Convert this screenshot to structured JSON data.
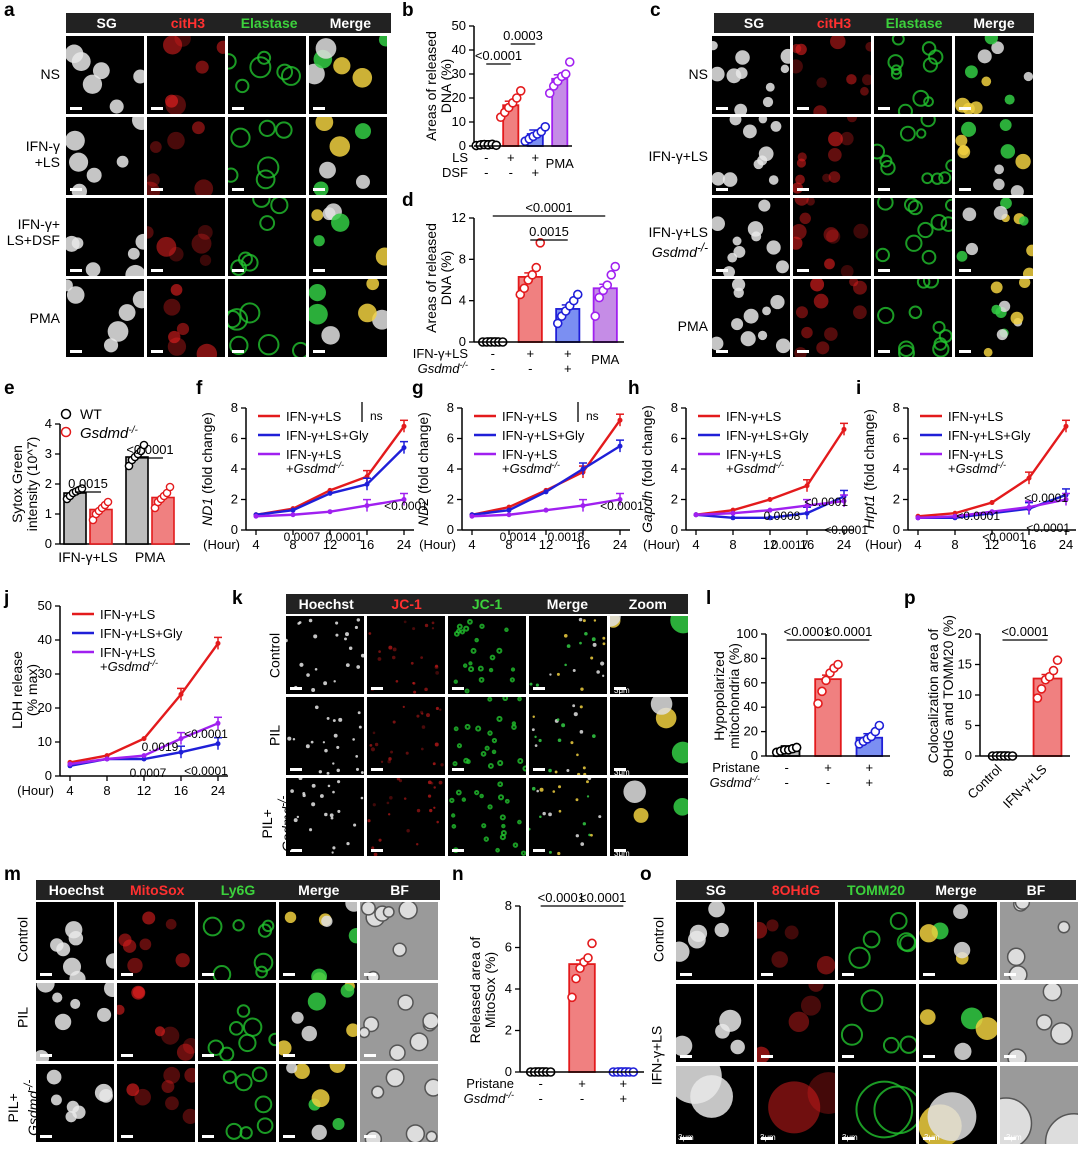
{
  "panels": {
    "a": "a",
    "b": "b",
    "c": "c",
    "d": "d",
    "e": "e",
    "f": "f",
    "g": "g",
    "h": "h",
    "i": "i",
    "j": "j",
    "k": "k",
    "l": "l",
    "m": "m",
    "n": "n",
    "o": "o",
    "p": "p"
  },
  "colors": {
    "red": "#e31a1c",
    "blue": "#1f1fd8",
    "purple": "#a020f0",
    "green": "#1db33a",
    "pink": "#f08080",
    "lightblue": "#7b8ff2",
    "lightpurple": "#c58ce6",
    "grey": "#bdbdbd"
  },
  "a": {
    "headers": [
      "SG",
      "citH3",
      "Elastase",
      "Merge"
    ],
    "rows": [
      "NS",
      "IFN-γ\n+LS",
      "IFN-γ+\nLS+DSF",
      "PMA"
    ]
  },
  "c": {
    "headers": [
      "SG",
      "citH3",
      "Elastase",
      "Merge"
    ],
    "rows": [
      "NS",
      "IFN-γ+LS",
      "IFN-γ+LS",
      "PMA"
    ],
    "row3_italic": "Gsdmd-/-"
  },
  "k": {
    "headers": [
      "Hoechst",
      "JC-1",
      "JC-1",
      "Merge",
      "Zoom"
    ],
    "rows": [
      "Control",
      "PIL",
      "PIL+"
    ],
    "row3_italic": "Gsdmd-/-",
    "scale": "3μm"
  },
  "m": {
    "headers": [
      "Hoechst",
      "MitoSox",
      "Ly6G",
      "Merge",
      "BF"
    ],
    "rows": [
      "Control",
      "PIL",
      "PIL+"
    ],
    "row3_italic": "Gsdmd-/-"
  },
  "o": {
    "headers": [
      "SG",
      "8OHdG",
      "TOMM20",
      "Merge",
      "BF"
    ],
    "rows": [
      "Control",
      "IFN-γ+LS"
    ],
    "scale": "3μm"
  },
  "chart_data": [
    {
      "panel": "b",
      "type": "bar",
      "ylabel": "Areas of released DNA (%)",
      "ylim": [
        0,
        50
      ],
      "yticks": [
        0,
        10,
        20,
        30,
        40,
        50
      ],
      "rows": [
        {
          "label": "LS",
          "vals": [
            "-",
            "+",
            "+",
            "PMA"
          ]
        },
        {
          "label": "DSF",
          "vals": [
            "-",
            "-",
            "+",
            ""
          ]
        }
      ],
      "values": [
        0.5,
        17,
        5,
        28
      ],
      "points": [
        [
          0.2,
          0.4,
          0.6,
          0.5,
          0.7,
          0.3
        ],
        [
          12,
          14,
          16,
          18,
          20,
          23
        ],
        [
          2,
          3,
          4,
          5,
          6,
          8
        ],
        [
          22,
          25,
          27,
          29,
          30,
          35
        ]
      ],
      "colors": [
        "#bdbdbd",
        "#f08080",
        "#7b8ff2",
        "#c58ce6"
      ],
      "edge": [
        "#000",
        "#e31a1c",
        "#1f1fd8",
        "#a020f0"
      ],
      "annotations": [
        "<0.0001",
        "0.0003"
      ]
    },
    {
      "panel": "d",
      "type": "bar",
      "ylabel": "Areas of released DNA (%)",
      "ylim": [
        0,
        12
      ],
      "yticks": [
        0,
        4,
        8,
        12
      ],
      "rows": [
        {
          "label": "IFN-γ+LS",
          "vals": [
            "-",
            "+",
            "+",
            "PMA"
          ]
        },
        {
          "label": "Gsdmd-/-",
          "vals": [
            "-",
            "-",
            "+",
            ""
          ]
        }
      ],
      "values": [
        0,
        6.3,
        3.2,
        5.2
      ],
      "points": [
        [
          0,
          0,
          0,
          0,
          0,
          0
        ],
        [
          4.6,
          5.2,
          6,
          6.5,
          7.2,
          9.6
        ],
        [
          1.8,
          2.5,
          3,
          3.5,
          4,
          4.6
        ],
        [
          2.5,
          4.3,
          5,
          5.5,
          6.5,
          7.3
        ]
      ],
      "colors": [
        "#bdbdbd",
        "#f08080",
        "#7b8ff2",
        "#c58ce6"
      ],
      "edge": [
        "#000",
        "#e31a1c",
        "#1f1fd8",
        "#a020f0"
      ],
      "annotations": [
        "<0.0001",
        "0.0015"
      ]
    },
    {
      "panel": "e",
      "type": "bar",
      "ylabel": "Sytox Green intensity (10^7)",
      "ylim": [
        0,
        4
      ],
      "yticks": [
        0,
        1,
        2,
        3,
        4
      ],
      "categories": [
        "IFN-γ+LS",
        "PMA"
      ],
      "legend": [
        "WT",
        "Gsdmd-/-"
      ],
      "series": [
        {
          "name": "WT",
          "values": [
            1.7,
            2.9
          ],
          "points": [
            [
              1.5,
              1.6,
              1.7,
              1.75,
              1.8,
              1.85
            ],
            [
              2.6,
              2.8,
              2.9,
              3.0,
              3.1,
              3.3
            ]
          ]
        },
        {
          "name": "Gsdmd-/-",
          "values": [
            1.15,
            1.55
          ],
          "points": [
            [
              0.8,
              1.0,
              1.1,
              1.2,
              1.3,
              1.4
            ],
            [
              1.2,
              1.4,
              1.5,
              1.6,
              1.7,
              1.9
            ]
          ]
        }
      ],
      "annotations": [
        "0.0015",
        "<0.0001"
      ]
    },
    {
      "panel": "f",
      "type": "line",
      "ylabel": "ND1 (fold change)",
      "xlabel": "(Hour)",
      "x": [
        "4",
        "8",
        "12",
        "16",
        "24"
      ],
      "ylim": [
        0,
        8
      ],
      "yticks": [
        0,
        2,
        4,
        6,
        8
      ],
      "series": [
        {
          "name": "IFN-γ+LS",
          "values": [
            1,
            1.4,
            2.6,
            3.5,
            6.8
          ]
        },
        {
          "name": "IFN-γ+LS+Gly",
          "values": [
            1,
            1.3,
            2.4,
            3,
            5.4
          ]
        },
        {
          "name": "IFN-γ+LS +Gsdmd-/-",
          "values": [
            0.9,
            1,
            1.2,
            1.6,
            2
          ]
        }
      ],
      "annotations": [
        "ns",
        "<0.0001",
        "0.0007",
        "0.0001"
      ]
    },
    {
      "panel": "g",
      "type": "line",
      "ylabel": "ND2 (fold change)",
      "xlabel": "(Hour)",
      "x": [
        "4",
        "8",
        "12",
        "16",
        "24"
      ],
      "ylim": [
        0,
        8
      ],
      "yticks": [
        0,
        2,
        4,
        6,
        8
      ],
      "series": [
        {
          "name": "IFN-γ+LS",
          "values": [
            1,
            1.5,
            2.6,
            3.8,
            7.2
          ]
        },
        {
          "name": "IFN-γ+LS+Gly",
          "values": [
            1,
            1.3,
            2.5,
            4,
            5.5
          ]
        },
        {
          "name": "IFN-γ+LS +Gsdmd-/-",
          "values": [
            0.9,
            1,
            1.3,
            1.6,
            2
          ]
        }
      ],
      "annotations": [
        "ns",
        "<0.0001",
        "0.0014",
        "0.0018"
      ]
    },
    {
      "panel": "h",
      "type": "line",
      "ylabel": "Gapdh (fold change)",
      "xlabel": "(Hour)",
      "x": [
        "4",
        "8",
        "12",
        "16",
        "24"
      ],
      "ylim": [
        0,
        8
      ],
      "yticks": [
        0,
        2,
        4,
        6,
        8
      ],
      "series": [
        {
          "name": "IFN-γ+LS",
          "values": [
            1,
            1.3,
            2,
            2.9,
            6.6
          ]
        },
        {
          "name": "IFN-γ+LS+Gly",
          "values": [
            1,
            0.8,
            0.8,
            1.1,
            2.2
          ]
        },
        {
          "name": "IFN-γ+LS +Gsdmd-/-",
          "values": [
            1,
            1.1,
            1.3,
            1.6,
            1.9
          ]
        }
      ],
      "annotations": [
        "<0.0001",
        "0.0008",
        "<0.0001",
        "0.0017"
      ]
    },
    {
      "panel": "i",
      "type": "line",
      "ylabel": "Hrpt1 (fold change)",
      "xlabel": "(Hour)",
      "x": [
        "4",
        "8",
        "12",
        "16",
        "24"
      ],
      "ylim": [
        0,
        8
      ],
      "yticks": [
        0,
        2,
        4,
        6,
        8
      ],
      "series": [
        {
          "name": "IFN-γ+LS",
          "values": [
            0.9,
            1.1,
            1.8,
            3.4,
            6.8
          ]
        },
        {
          "name": "IFN-γ+LS+Gly",
          "values": [
            0.8,
            0.8,
            1.1,
            1.4,
            2.3
          ]
        },
        {
          "name": "IFN-γ+LS +Gsdmd-/-",
          "values": [
            0.8,
            0.9,
            1.2,
            1.5,
            2.0
          ]
        }
      ],
      "annotations": [
        "<0.0001",
        "<0.0001",
        "<0.0001",
        "<0.0001"
      ]
    },
    {
      "panel": "j",
      "type": "line",
      "ylabel": "LDH release (% max)",
      "xlabel": "(Hour)",
      "x": [
        "4",
        "8",
        "12",
        "16",
        "24"
      ],
      "ylim": [
        0,
        50
      ],
      "yticks": [
        0,
        10,
        20,
        30,
        40,
        50
      ],
      "series": [
        {
          "name": "IFN-γ+LS",
          "values": [
            4,
            6,
            11,
            24,
            39
          ]
        },
        {
          "name": "IFN-γ+LS+Gly",
          "values": [
            3,
            5,
            5,
            7,
            9.5
          ]
        },
        {
          "name": "IFN-γ+LS +Gsdmd-/-",
          "values": [
            3.5,
            5,
            6,
            11,
            15.5
          ]
        }
      ],
      "annotations": [
        "<0.0001",
        "0.0019",
        "0.0007",
        "<0.0001"
      ]
    },
    {
      "panel": "l",
      "type": "bar",
      "ylabel": "Hypopolarized mitochondria (%)",
      "ylim": [
        0,
        100
      ],
      "yticks": [
        0,
        20,
        40,
        60,
        80,
        100
      ],
      "rows": [
        {
          "label": "Pristane",
          "vals": [
            "-",
            "+",
            "+"
          ]
        },
        {
          "label": "Gsdmd-/-",
          "vals": [
            "-",
            "-",
            "+"
          ]
        }
      ],
      "values": [
        5,
        63,
        15
      ],
      "points": [
        [
          3,
          4,
          5,
          5,
          6,
          7
        ],
        [
          43,
          53,
          62,
          68,
          72,
          75
        ],
        [
          10,
          12,
          14,
          16,
          20,
          25
        ]
      ],
      "colors": [
        "#bdbdbd",
        "#f08080",
        "#7b8ff2"
      ],
      "edge": [
        "#000",
        "#e31a1c",
        "#1f1fd8"
      ],
      "annotations": [
        "<0.0001",
        "<0.0001"
      ]
    },
    {
      "panel": "n",
      "type": "bar",
      "ylabel": "Released area of MitoSox (%)",
      "ylim": [
        0,
        8
      ],
      "yticks": [
        0,
        2,
        4,
        6,
        8
      ],
      "rows": [
        {
          "label": "Pristane",
          "vals": [
            "-",
            "+",
            "+"
          ]
        },
        {
          "label": "Gsdmd-/-",
          "vals": [
            "-",
            "-",
            "+"
          ]
        }
      ],
      "values": [
        0,
        5.2,
        0
      ],
      "points": [
        [
          0,
          0,
          0,
          0,
          0,
          0
        ],
        [
          3.6,
          4.5,
          5,
          5.3,
          5.5,
          6.2
        ],
        [
          0,
          0,
          0,
          0,
          0,
          0
        ]
      ],
      "colors": [
        "#bdbdbd",
        "#f08080",
        "#7b8ff2"
      ],
      "edge": [
        "#000",
        "#e31a1c",
        "#1f1fd8"
      ],
      "annotations": [
        "<0.0001",
        "<0.0001"
      ]
    },
    {
      "panel": "p",
      "type": "bar",
      "ylabel": "Colocalization area of 8OHdG and TOMM20 (%)",
      "ylim": [
        0,
        20
      ],
      "yticks": [
        0,
        5,
        10,
        15,
        20
      ],
      "categories": [
        "Control",
        "IFN-γ+LS"
      ],
      "values": [
        0,
        12.7
      ],
      "points": [
        [
          0,
          0,
          0,
          0,
          0,
          0
        ],
        [
          9.5,
          11,
          12.5,
          13,
          14,
          15.7
        ]
      ],
      "colors": [
        "#bdbdbd",
        "#f08080"
      ],
      "edge": [
        "#000",
        "#e31a1c"
      ],
      "annotations": [
        "<0.0001"
      ]
    }
  ]
}
